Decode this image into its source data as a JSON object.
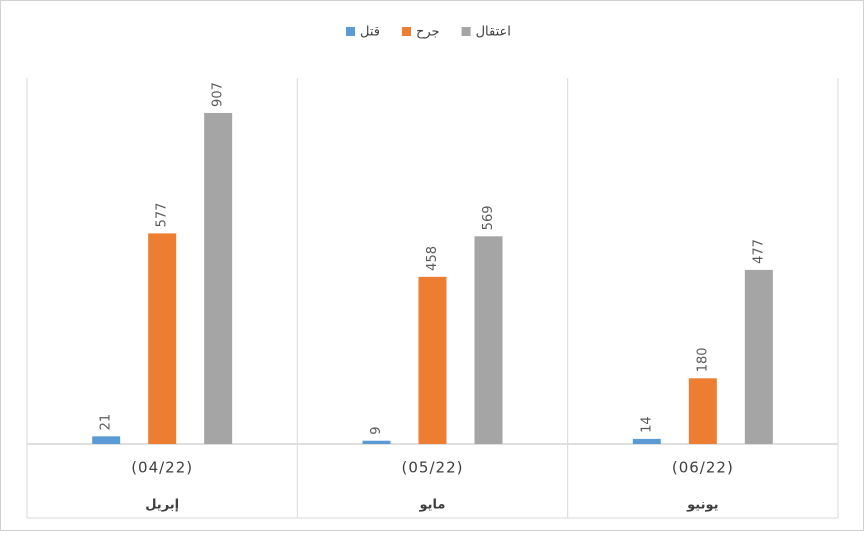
{
  "chart_data": {
    "type": "bar",
    "categories": [
      [
        "(04/22)",
        "إبريل"
      ],
      [
        "(05/22)",
        "مايو"
      ],
      [
        "(06/22)",
        "يونيو"
      ]
    ],
    "series": [
      {
        "name": "قتل",
        "color": "#5b9bd5",
        "values": [
          21,
          9,
          14
        ]
      },
      {
        "name": "جرح",
        "color": "#ed7d31",
        "values": [
          577,
          458,
          180
        ]
      },
      {
        "name": "اعتقال",
        "color": "#a5a5a5",
        "values": [
          907,
          569,
          477
        ]
      }
    ],
    "ylim": [
      0,
      1000
    ],
    "legend": "top"
  }
}
